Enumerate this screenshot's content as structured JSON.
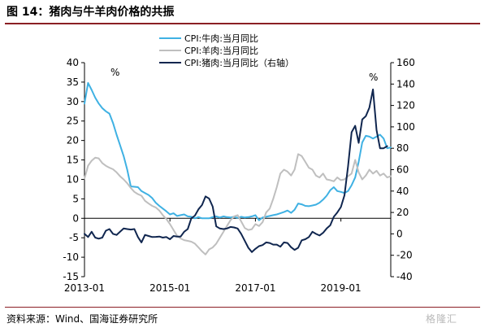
{
  "title": "图 14：猪肉与牛羊肉价格的共振",
  "source": "资料来源：Wind、国海证券研究所",
  "watermark": "格隆汇",
  "chart_data": {
    "type": "line",
    "x_axis": {
      "min": "2013-01",
      "max": "2020-03",
      "tick_labels": [
        "2013-01",
        "2015-01",
        "2017-01",
        "2019-01"
      ]
    },
    "y_left": {
      "min": -15,
      "max": 40,
      "ticks": [
        -15,
        -10,
        -5,
        0,
        5,
        10,
        15,
        20,
        25,
        30,
        35,
        40
      ],
      "unit": "%"
    },
    "y_right": {
      "min": -40,
      "max": 160,
      "ticks": [
        -40,
        -20,
        0,
        20,
        40,
        60,
        80,
        100,
        120,
        140,
        160
      ],
      "unit": "%"
    },
    "legend_position": "top-center",
    "series": [
      {
        "name": "CPI:牛肉:当月同比",
        "axis": "left",
        "color": "#3fb1e3",
        "width": 2,
        "points": [
          [
            "2013-01",
            29.5
          ],
          [
            "2013-02",
            34.8
          ],
          [
            "2013-03",
            33.0
          ],
          [
            "2013-04",
            31.0
          ],
          [
            "2013-05",
            29.5
          ],
          [
            "2013-06",
            28.3
          ],
          [
            "2013-07",
            27.5
          ],
          [
            "2013-08",
            26.9
          ],
          [
            "2013-09",
            24.5
          ],
          [
            "2013-10",
            21.5
          ],
          [
            "2013-11",
            18.8
          ],
          [
            "2013-12",
            16.0
          ],
          [
            "2014-01",
            12.5
          ],
          [
            "2014-02",
            8.2
          ],
          [
            "2014-03",
            8.1
          ],
          [
            "2014-04",
            8.0
          ],
          [
            "2014-05",
            7.0
          ],
          [
            "2014-06",
            6.5
          ],
          [
            "2014-07",
            6.0
          ],
          [
            "2014-08",
            5.2
          ],
          [
            "2014-09",
            4.0
          ],
          [
            "2014-10",
            3.2
          ],
          [
            "2014-11",
            2.5
          ],
          [
            "2014-12",
            1.8
          ],
          [
            "2015-01",
            1.0
          ],
          [
            "2015-02",
            1.3
          ],
          [
            "2015-03",
            0.6
          ],
          [
            "2015-04",
            0.8
          ],
          [
            "2015-05",
            1.0
          ],
          [
            "2015-06",
            0.5
          ],
          [
            "2015-07",
            0.4
          ],
          [
            "2015-08",
            0.0
          ],
          [
            "2015-09",
            0.3
          ],
          [
            "2015-10",
            0.0
          ],
          [
            "2015-11",
            0.0
          ],
          [
            "2015-12",
            0.0
          ],
          [
            "2016-01",
            0.3
          ],
          [
            "2016-02",
            0.5
          ],
          [
            "2016-03",
            0.2
          ],
          [
            "2016-04",
            0.5
          ],
          [
            "2016-05",
            0.3
          ],
          [
            "2016-06",
            0.2
          ],
          [
            "2016-07",
            0.4
          ],
          [
            "2016-08",
            0.1
          ],
          [
            "2016-09",
            0.4
          ],
          [
            "2016-10",
            0.2
          ],
          [
            "2016-11",
            0.3
          ],
          [
            "2016-12",
            0.5
          ],
          [
            "2017-01",
            0.8
          ],
          [
            "2017-02",
            -0.5
          ],
          [
            "2017-03",
            0.2
          ],
          [
            "2017-04",
            0.4
          ],
          [
            "2017-05",
            0.6
          ],
          [
            "2017-06",
            0.8
          ],
          [
            "2017-07",
            1.0
          ],
          [
            "2017-08",
            1.3
          ],
          [
            "2017-09",
            1.6
          ],
          [
            "2017-10",
            2.0
          ],
          [
            "2017-11",
            1.4
          ],
          [
            "2017-12",
            2.2
          ],
          [
            "2018-01",
            3.8
          ],
          [
            "2018-02",
            3.6
          ],
          [
            "2018-03",
            3.2
          ],
          [
            "2018-04",
            3.1
          ],
          [
            "2018-05",
            3.3
          ],
          [
            "2018-06",
            3.5
          ],
          [
            "2018-07",
            4.0
          ],
          [
            "2018-08",
            4.8
          ],
          [
            "2018-09",
            5.8
          ],
          [
            "2018-10",
            7.2
          ],
          [
            "2018-11",
            8.0
          ],
          [
            "2018-12",
            7.0
          ],
          [
            "2019-01",
            6.8
          ],
          [
            "2019-02",
            6.5
          ],
          [
            "2019-03",
            7.0
          ],
          [
            "2019-04",
            8.5
          ],
          [
            "2019-05",
            10.5
          ],
          [
            "2019-06",
            14.5
          ],
          [
            "2019-07",
            19.5
          ],
          [
            "2019-08",
            21.2
          ],
          [
            "2019-09",
            21.0
          ],
          [
            "2019-10",
            20.5
          ],
          [
            "2019-11",
            21.0
          ],
          [
            "2019-12",
            21.5
          ],
          [
            "2020-01",
            20.5
          ],
          [
            "2020-02",
            18.0
          ],
          [
            "2020-03",
            18.2
          ]
        ]
      },
      {
        "name": "CPI:羊肉:当月同比",
        "axis": "left",
        "color": "#bfbfbf",
        "width": 2,
        "points": [
          [
            "2013-01",
            10.2
          ],
          [
            "2013-02",
            13.5
          ],
          [
            "2013-03",
            14.8
          ],
          [
            "2013-04",
            15.6
          ],
          [
            "2013-05",
            15.4
          ],
          [
            "2013-06",
            14.2
          ],
          [
            "2013-07",
            13.5
          ],
          [
            "2013-08",
            13.0
          ],
          [
            "2013-09",
            12.6
          ],
          [
            "2013-10",
            11.8
          ],
          [
            "2013-11",
            10.8
          ],
          [
            "2013-12",
            10.0
          ],
          [
            "2014-01",
            9.0
          ],
          [
            "2014-02",
            7.8
          ],
          [
            "2014-03",
            6.8
          ],
          [
            "2014-04",
            6.2
          ],
          [
            "2014-05",
            5.8
          ],
          [
            "2014-06",
            4.5
          ],
          [
            "2014-07",
            3.8
          ],
          [
            "2014-08",
            3.2
          ],
          [
            "2014-09",
            2.8
          ],
          [
            "2014-10",
            2.0
          ],
          [
            "2014-11",
            0.8
          ],
          [
            "2014-12",
            -0.2
          ],
          [
            "2015-01",
            -1.5
          ],
          [
            "2015-02",
            -3.0
          ],
          [
            "2015-03",
            -4.5
          ],
          [
            "2015-04",
            -5.2
          ],
          [
            "2015-05",
            -5.6
          ],
          [
            "2015-06",
            -5.8
          ],
          [
            "2015-07",
            -6.0
          ],
          [
            "2015-08",
            -6.5
          ],
          [
            "2015-09",
            -7.5
          ],
          [
            "2015-10",
            -8.5
          ],
          [
            "2015-11",
            -9.3
          ],
          [
            "2015-12",
            -8.0
          ],
          [
            "2016-01",
            -7.5
          ],
          [
            "2016-02",
            -6.5
          ],
          [
            "2016-03",
            -5.0
          ],
          [
            "2016-04",
            -3.5
          ],
          [
            "2016-05",
            -2.0
          ],
          [
            "2016-06",
            -0.5
          ],
          [
            "2016-07",
            0.5
          ],
          [
            "2016-08",
            0.8
          ],
          [
            "2016-09",
            -0.8
          ],
          [
            "2016-10",
            -2.5
          ],
          [
            "2016-11",
            -3.0
          ],
          [
            "2016-12",
            -2.8
          ],
          [
            "2017-01",
            -1.5
          ],
          [
            "2017-02",
            -2.0
          ],
          [
            "2017-03",
            -1.0
          ],
          [
            "2017-04",
            1.5
          ],
          [
            "2017-05",
            2.5
          ],
          [
            "2017-06",
            5.0
          ],
          [
            "2017-07",
            8.0
          ],
          [
            "2017-08",
            11.5
          ],
          [
            "2017-09",
            12.5
          ],
          [
            "2017-10",
            12.0
          ],
          [
            "2017-11",
            11.0
          ],
          [
            "2017-12",
            12.5
          ],
          [
            "2018-01",
            16.5
          ],
          [
            "2018-02",
            16.0
          ],
          [
            "2018-03",
            14.5
          ],
          [
            "2018-04",
            13.0
          ],
          [
            "2018-05",
            12.5
          ],
          [
            "2018-06",
            11.0
          ],
          [
            "2018-07",
            10.5
          ],
          [
            "2018-08",
            11.5
          ],
          [
            "2018-09",
            10.0
          ],
          [
            "2018-10",
            9.8
          ],
          [
            "2018-11",
            9.5
          ],
          [
            "2018-12",
            10.5
          ],
          [
            "2019-01",
            9.8
          ],
          [
            "2019-02",
            10.0
          ],
          [
            "2019-03",
            10.8
          ],
          [
            "2019-04",
            11.5
          ],
          [
            "2019-05",
            15.0
          ],
          [
            "2019-06",
            11.8
          ],
          [
            "2019-07",
            10.0
          ],
          [
            "2019-08",
            11.0
          ],
          [
            "2019-09",
            12.5
          ],
          [
            "2019-10",
            11.5
          ],
          [
            "2019-11",
            12.2
          ],
          [
            "2019-12",
            11.0
          ],
          [
            "2020-01",
            11.5
          ],
          [
            "2020-02",
            10.5
          ],
          [
            "2020-03",
            10.8
          ]
        ]
      },
      {
        "name": "CPI:猪肉:当月同比（右轴）",
        "axis": "right",
        "color": "#10264f",
        "width": 2,
        "points": [
          [
            "2013-01",
            0.0
          ],
          [
            "2013-02",
            -3.0
          ],
          [
            "2013-03",
            2.0
          ],
          [
            "2013-04",
            -3.5
          ],
          [
            "2013-05",
            -4.5
          ],
          [
            "2013-06",
            -3.5
          ],
          [
            "2013-07",
            3.0
          ],
          [
            "2013-08",
            4.5
          ],
          [
            "2013-09",
            0.0
          ],
          [
            "2013-10",
            -1.0
          ],
          [
            "2013-11",
            2.0
          ],
          [
            "2013-12",
            5.0
          ],
          [
            "2014-01",
            4.5
          ],
          [
            "2014-02",
            4.0
          ],
          [
            "2014-03",
            4.5
          ],
          [
            "2014-04",
            -3.0
          ],
          [
            "2014-05",
            -8.0
          ],
          [
            "2014-06",
            -1.0
          ],
          [
            "2014-07",
            -2.0
          ],
          [
            "2014-08",
            -3.0
          ],
          [
            "2014-09",
            -2.8
          ],
          [
            "2014-10",
            -2.5
          ],
          [
            "2014-11",
            -3.5
          ],
          [
            "2014-12",
            -3.0
          ],
          [
            "2015-01",
            -5.0
          ],
          [
            "2015-02",
            -2.0
          ],
          [
            "2015-03",
            -2.5
          ],
          [
            "2015-04",
            -2.5
          ],
          [
            "2015-05",
            2.0
          ],
          [
            "2015-06",
            4.5
          ],
          [
            "2015-07",
            14.5
          ],
          [
            "2015-08",
            17.0
          ],
          [
            "2015-09",
            23.0
          ],
          [
            "2015-10",
            27.0
          ],
          [
            "2015-11",
            35.0
          ],
          [
            "2015-12",
            33.0
          ],
          [
            "2016-01",
            25.5
          ],
          [
            "2016-02",
            7.0
          ],
          [
            "2016-03",
            5.0
          ],
          [
            "2016-04",
            4.5
          ],
          [
            "2016-05",
            5.0
          ],
          [
            "2016-06",
            6.5
          ],
          [
            "2016-07",
            6.0
          ],
          [
            "2016-08",
            5.0
          ],
          [
            "2016-09",
            0.0
          ],
          [
            "2016-10",
            -6.5
          ],
          [
            "2016-11",
            -13.0
          ],
          [
            "2016-12",
            -17.0
          ],
          [
            "2017-01",
            -14.0
          ],
          [
            "2017-02",
            -11.5
          ],
          [
            "2017-03",
            -10.5
          ],
          [
            "2017-04",
            -8.0
          ],
          [
            "2017-05",
            -8.5
          ],
          [
            "2017-06",
            -10.0
          ],
          [
            "2017-07",
            -10.0
          ],
          [
            "2017-08",
            -12.0
          ],
          [
            "2017-09",
            -8.0
          ],
          [
            "2017-10",
            -8.5
          ],
          [
            "2017-11",
            -12.5
          ],
          [
            "2017-12",
            -15.0
          ],
          [
            "2018-01",
            -13.0
          ],
          [
            "2018-02",
            -6.0
          ],
          [
            "2018-03",
            -5.0
          ],
          [
            "2018-04",
            -3.0
          ],
          [
            "2018-05",
            2.0
          ],
          [
            "2018-06",
            0.0
          ],
          [
            "2018-07",
            -1.5
          ],
          [
            "2018-08",
            1.0
          ],
          [
            "2018-09",
            5.0
          ],
          [
            "2018-10",
            8.0
          ],
          [
            "2018-11",
            16.0
          ],
          [
            "2018-12",
            20.0
          ],
          [
            "2019-01",
            25.0
          ],
          [
            "2019-02",
            36.0
          ],
          [
            "2019-03",
            63.0
          ],
          [
            "2019-04",
            95.0
          ],
          [
            "2019-05",
            101.0
          ],
          [
            "2019-06",
            85.0
          ],
          [
            "2019-07",
            107.0
          ],
          [
            "2019-08",
            110.0
          ],
          [
            "2019-09",
            118.0
          ],
          [
            "2019-10",
            135.0
          ],
          [
            "2019-11",
            97.0
          ],
          [
            "2019-12",
            80.0
          ],
          [
            "2020-01",
            80.0
          ],
          [
            "2020-02",
            82.0
          ]
        ]
      }
    ],
    "annotations": [
      {
        "text": "%",
        "position": "top-left"
      },
      {
        "text": "%",
        "position": "top-right"
      }
    ]
  }
}
